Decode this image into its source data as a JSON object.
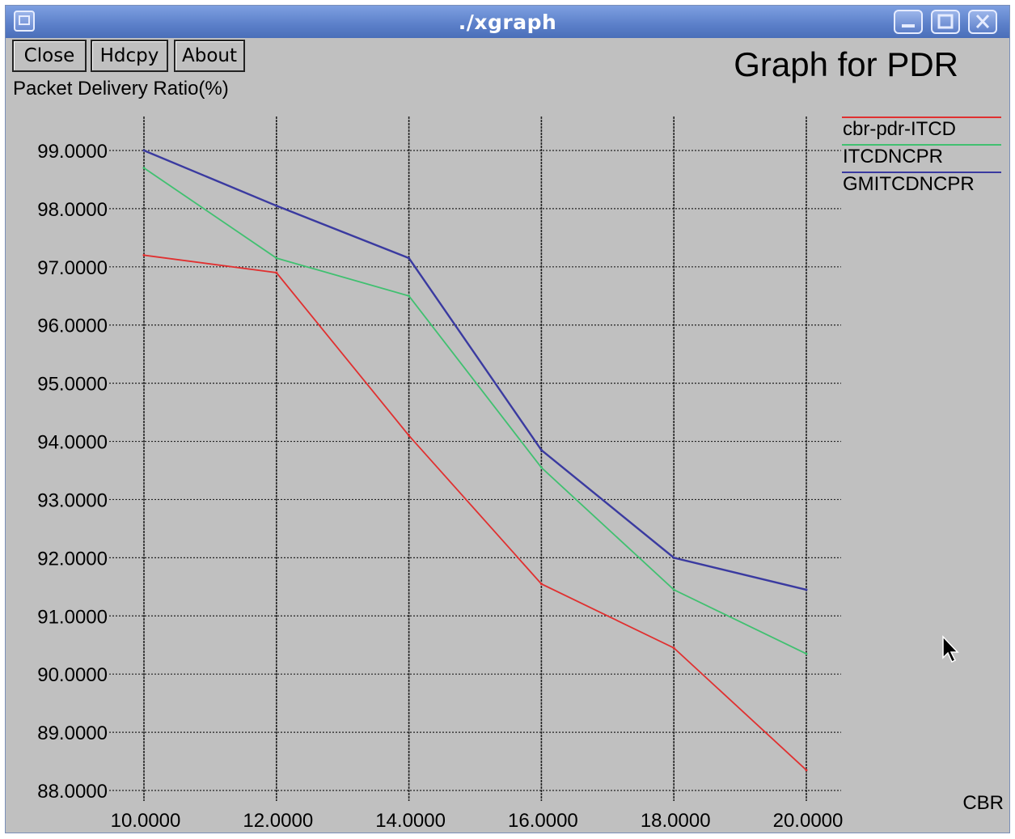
{
  "window": {
    "title": "./xgraph"
  },
  "toolbar": {
    "close_label": "Close",
    "hdcpy_label": "Hdcpy",
    "about_label": "About"
  },
  "colors": {
    "window_bg": "#c0c0c0",
    "grid": "#222222"
  },
  "chart_data": {
    "type": "line",
    "title": "Graph for PDR",
    "xlabel": "CBR",
    "ylabel": "Packet Delivery Ratio(%)",
    "x": [
      10,
      12,
      14,
      16,
      18,
      20
    ],
    "xlim": [
      10,
      20
    ],
    "ylim": [
      88,
      99
    ],
    "xticks": [
      "10.0000",
      "12.0000",
      "14.0000",
      "16.0000",
      "18.0000",
      "20.0000"
    ],
    "yticks": [
      "99.0000",
      "98.0000",
      "97.0000",
      "96.0000",
      "95.0000",
      "94.0000",
      "93.0000",
      "92.0000",
      "91.0000",
      "90.0000",
      "89.0000",
      "88.0000"
    ],
    "grid": true,
    "legend_position": "right",
    "series": [
      {
        "name": "cbr-pdr-ITCD",
        "color": "#e03030",
        "values": [
          97.2,
          96.9,
          94.1,
          91.55,
          90.45,
          88.35
        ]
      },
      {
        "name": "ITCDNCPR",
        "color": "#40c070",
        "values": [
          98.7,
          97.15,
          96.5,
          93.55,
          91.45,
          90.35
        ]
      },
      {
        "name": "GMITCDNCPR",
        "color": "#3a3aa0",
        "values": [
          99.0,
          98.05,
          97.15,
          93.85,
          92.0,
          91.45
        ]
      }
    ]
  }
}
